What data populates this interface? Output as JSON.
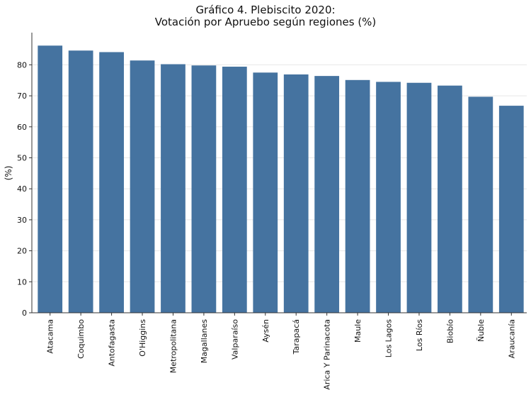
{
  "chart_data": {
    "type": "bar",
    "title": "Gráfico 4. Plebiscito 2020:",
    "subtitle": "Votación por Apruebo según regiones (%)",
    "xlabel": "",
    "ylabel": "(%)",
    "ylim": [
      0,
      90
    ],
    "yticks": [
      0,
      10,
      20,
      30,
      40,
      50,
      60,
      70,
      80
    ],
    "grid": true,
    "bar_color": "#4573a0",
    "categories": [
      "Atacama",
      "Coquimbo",
      "Antofagasta",
      "O'Higgins",
      "Metropolitana",
      "Magallanes",
      "Valparaíso",
      "Aysén",
      "Tarapacá",
      "Arica Y Parinacota",
      "Maule",
      "Los Lagos",
      "Los Ríos",
      "Biobío",
      "Ñuble",
      "Araucanía"
    ],
    "values": [
      86.2,
      84.6,
      84.1,
      81.4,
      80.2,
      79.8,
      79.4,
      77.5,
      76.9,
      76.4,
      75.1,
      74.5,
      74.2,
      73.3,
      69.7,
      66.8
    ]
  }
}
